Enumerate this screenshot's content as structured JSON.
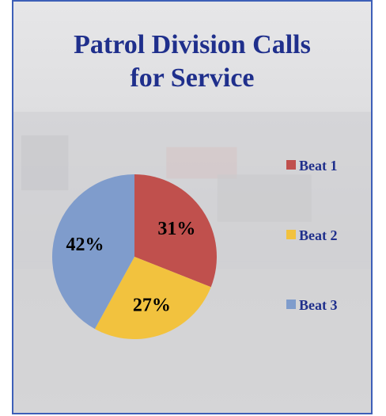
{
  "chart_data": {
    "type": "pie",
    "title": "Patrol Division Calls for Service",
    "title_lines": [
      "Patrol Division Calls",
      "for Service"
    ],
    "categories": [
      "Beat 1",
      "Beat 2",
      "Beat 3"
    ],
    "values": [
      31,
      27,
      42
    ],
    "labels": [
      "31%",
      "27%",
      "42%"
    ],
    "colors": [
      "#c0504d",
      "#f2c23e",
      "#7f9ccc"
    ],
    "legend_position": "right"
  }
}
